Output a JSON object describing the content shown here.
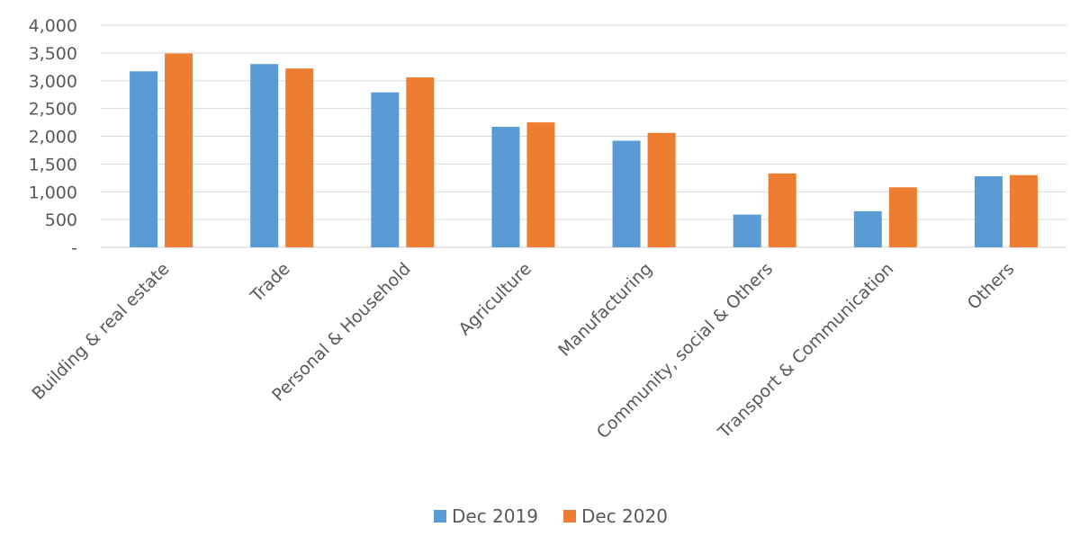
{
  "chart_data": {
    "type": "bar",
    "title": "",
    "xlabel": "",
    "ylabel": "",
    "categories": [
      "Building & real estate",
      "Trade",
      "Personal & Household",
      "Agriculture",
      "Manufacturing",
      "Community, social & Others",
      "Transport & Communication",
      "Others"
    ],
    "series": [
      {
        "name": "Dec 2019",
        "color": "#5b9bd5",
        "values": [
          3170,
          3300,
          2790,
          2170,
          1920,
          590,
          650,
          1280
        ]
      },
      {
        "name": "Dec 2020",
        "color": "#ed7d31",
        "values": [
          3490,
          3220,
          3060,
          2250,
          2060,
          1330,
          1080,
          1300
        ]
      }
    ],
    "ylim": [
      0,
      4000
    ],
    "yticks": [
      0,
      500,
      1000,
      1500,
      2000,
      2500,
      3000,
      3500,
      4000
    ],
    "ytick_labels": [
      "-",
      "500",
      "1,000",
      "1,500",
      "2,000",
      "2,500",
      "3,000",
      "3,500",
      "4,000"
    ],
    "grid": true,
    "legend_position": "bottom"
  }
}
